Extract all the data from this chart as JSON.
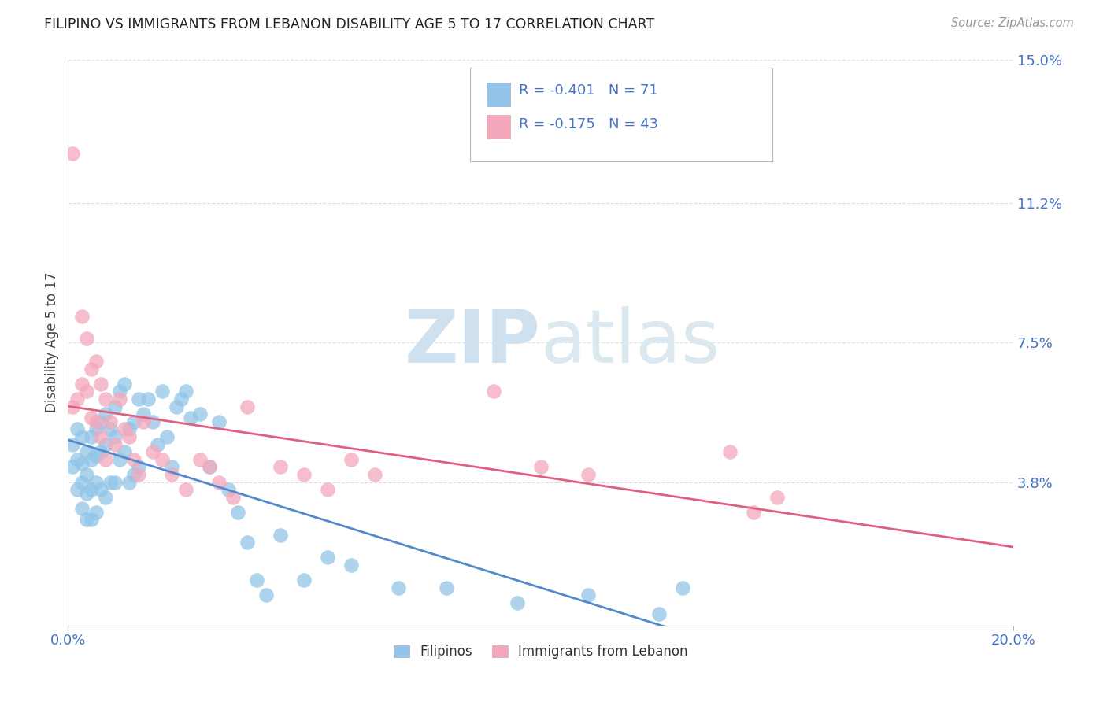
{
  "title": "FILIPINO VS IMMIGRANTS FROM LEBANON DISABILITY AGE 5 TO 17 CORRELATION CHART",
  "source": "Source: ZipAtlas.com",
  "ylabel": "Disability Age 5 to 17",
  "xlim": [
    0.0,
    0.2
  ],
  "ylim": [
    0.0,
    0.15
  ],
  "yticks": [
    0.0,
    0.038,
    0.075,
    0.112,
    0.15
  ],
  "ytick_labels": [
    "",
    "3.8%",
    "7.5%",
    "11.2%",
    "15.0%"
  ],
  "xtick_left_label": "0.0%",
  "xtick_right_label": "20.0%",
  "filipino_R": -0.401,
  "filipino_N": 71,
  "lebanon_R": -0.175,
  "lebanon_N": 43,
  "filipino_color": "#92C5E8",
  "lebanon_color": "#F4A7BB",
  "legend_label_1": "Filipinos",
  "legend_label_2": "Immigrants from Lebanon",
  "watermark_zip": "ZIP",
  "watermark_atlas": "atlas",
  "watermark_color": "#cfe0ef",
  "blue_line_color": "#5588CC",
  "pink_line_color": "#E06080",
  "dashed_extension_color": "#99bbdd",
  "legend_text_color": "#333333",
  "legend_RN_color": "#4472C4",
  "axis_label_color": "#4472C4",
  "title_color": "#222222",
  "source_color": "#999999",
  "grid_color": "#dddddd",
  "filipinos_x": [
    0.001,
    0.001,
    0.002,
    0.002,
    0.002,
    0.003,
    0.003,
    0.003,
    0.003,
    0.004,
    0.004,
    0.004,
    0.004,
    0.005,
    0.005,
    0.005,
    0.005,
    0.006,
    0.006,
    0.006,
    0.006,
    0.007,
    0.007,
    0.007,
    0.008,
    0.008,
    0.008,
    0.009,
    0.009,
    0.01,
    0.01,
    0.01,
    0.011,
    0.011,
    0.012,
    0.012,
    0.013,
    0.013,
    0.014,
    0.014,
    0.015,
    0.015,
    0.016,
    0.017,
    0.018,
    0.019,
    0.02,
    0.021,
    0.022,
    0.023,
    0.024,
    0.025,
    0.026,
    0.028,
    0.03,
    0.032,
    0.034,
    0.036,
    0.038,
    0.04,
    0.042,
    0.045,
    0.05,
    0.055,
    0.06,
    0.07,
    0.08,
    0.095,
    0.11,
    0.125,
    0.13
  ],
  "filipinos_y": [
    0.048,
    0.042,
    0.052,
    0.044,
    0.036,
    0.05,
    0.043,
    0.038,
    0.031,
    0.046,
    0.04,
    0.035,
    0.028,
    0.05,
    0.044,
    0.036,
    0.028,
    0.052,
    0.045,
    0.038,
    0.03,
    0.054,
    0.046,
    0.036,
    0.056,
    0.048,
    0.034,
    0.052,
    0.038,
    0.058,
    0.05,
    0.038,
    0.062,
    0.044,
    0.064,
    0.046,
    0.052,
    0.038,
    0.054,
    0.04,
    0.06,
    0.042,
    0.056,
    0.06,
    0.054,
    0.048,
    0.062,
    0.05,
    0.042,
    0.058,
    0.06,
    0.062,
    0.055,
    0.056,
    0.042,
    0.054,
    0.036,
    0.03,
    0.022,
    0.012,
    0.008,
    0.024,
    0.012,
    0.018,
    0.016,
    0.01,
    0.01,
    0.006,
    0.008,
    0.003,
    0.01
  ],
  "lebanon_x": [
    0.001,
    0.001,
    0.002,
    0.003,
    0.003,
    0.004,
    0.004,
    0.005,
    0.005,
    0.006,
    0.006,
    0.007,
    0.007,
    0.008,
    0.008,
    0.009,
    0.01,
    0.011,
    0.012,
    0.013,
    0.014,
    0.015,
    0.016,
    0.018,
    0.02,
    0.022,
    0.025,
    0.028,
    0.03,
    0.032,
    0.035,
    0.038,
    0.045,
    0.05,
    0.055,
    0.06,
    0.065,
    0.09,
    0.1,
    0.11,
    0.14,
    0.145,
    0.15
  ],
  "lebanon_y": [
    0.125,
    0.058,
    0.06,
    0.082,
    0.064,
    0.076,
    0.062,
    0.068,
    0.055,
    0.07,
    0.054,
    0.064,
    0.05,
    0.06,
    0.044,
    0.054,
    0.048,
    0.06,
    0.052,
    0.05,
    0.044,
    0.04,
    0.054,
    0.046,
    0.044,
    0.04,
    0.036,
    0.044,
    0.042,
    0.038,
    0.034,
    0.058,
    0.042,
    0.04,
    0.036,
    0.044,
    0.04,
    0.062,
    0.042,
    0.04,
    0.046,
    0.03,
    0.034
  ]
}
